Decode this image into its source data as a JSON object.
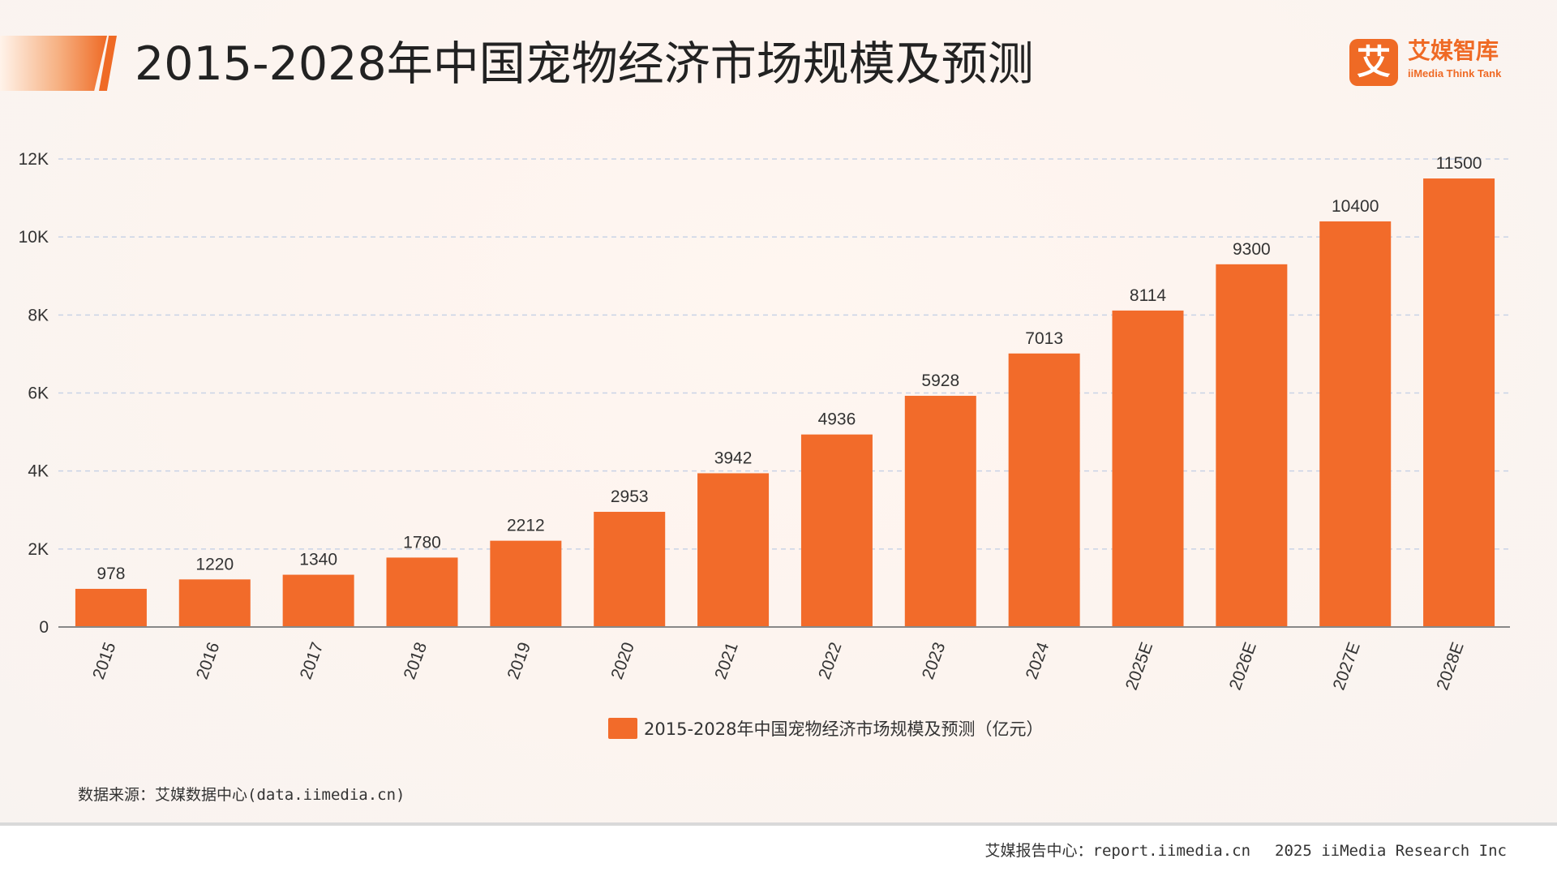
{
  "title": "2015-2028年中国宠物经济市场规模及预测",
  "logo": {
    "mark": "艾",
    "name": "艾媒智库",
    "sub": "iiMedia Think Tank"
  },
  "source": "数据来源：艾媒数据中心(data.iimedia.cn)",
  "footer": {
    "report": "艾媒报告中心：report.iimedia.cn",
    "copyright": "2025 iiMedia Research Inc"
  },
  "colors": {
    "bar": "#f26b2a",
    "accent": "#ef6a25",
    "axis": "#888888",
    "grid": "#c9d3e6",
    "text": "#333333"
  },
  "chart_data": {
    "type": "bar",
    "title": "",
    "xlabel": "",
    "ylabel": "",
    "categories": [
      "2015",
      "2016",
      "2017",
      "2018",
      "2019",
      "2020",
      "2021",
      "2022",
      "2023",
      "2024",
      "2025E",
      "2026E",
      "2027E",
      "2028E"
    ],
    "series": [
      {
        "name": "2015-2028年中国宠物经济市场规模及预测（亿元）",
        "values": [
          978,
          1220,
          1340,
          1780,
          2212,
          2953,
          3942,
          4936,
          5928,
          7013,
          8114,
          9300,
          10400,
          11500
        ]
      }
    ],
    "ylim": [
      0,
      12000
    ],
    "yticks": [
      0,
      2000,
      4000,
      6000,
      8000,
      10000,
      12000
    ],
    "ytick_labels": [
      "0",
      "2K",
      "4K",
      "6K",
      "8K",
      "10K",
      "12K"
    ],
    "grid": true,
    "grid_style": "dashed horizontal",
    "data_labels": true,
    "legend_position": "bottom-center",
    "xtick_rotation": "rotated about -70 degrees"
  }
}
